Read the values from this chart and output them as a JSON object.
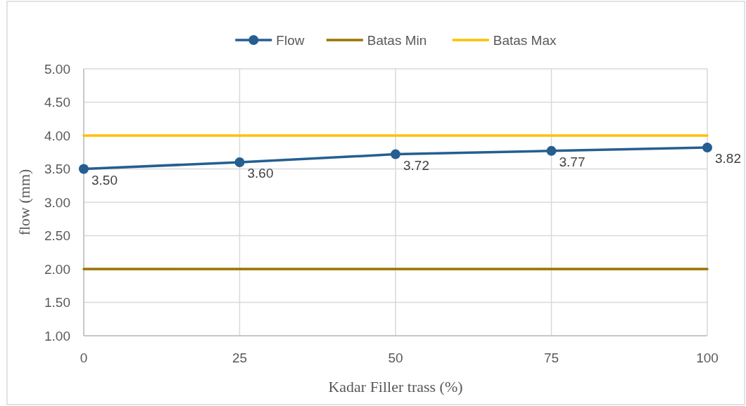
{
  "chart_data": {
    "type": "line",
    "xlabel": "Kadar Filler trass (%)",
    "ylabel": "flow (mm)",
    "x": [
      0,
      25,
      50,
      75,
      100
    ],
    "xlim": [
      0,
      100
    ],
    "xticks": [
      0,
      25,
      50,
      75,
      100
    ],
    "ylim": [
      1,
      5
    ],
    "yticks": [
      {
        "value": 1,
        "label": "1.00"
      },
      {
        "value": 1.5,
        "label": "1.50"
      },
      {
        "value": 2,
        "label": "2.00"
      },
      {
        "value": 2.5,
        "label": "2.50"
      },
      {
        "value": 3,
        "label": "3.00"
      },
      {
        "value": 3.5,
        "label": "3.50"
      },
      {
        "value": 4,
        "label": "4.00"
      },
      {
        "value": 4.5,
        "label": "4.50"
      },
      {
        "value": 5,
        "label": "5.00"
      }
    ],
    "grid": true,
    "legend": "top",
    "series": [
      {
        "name": "Flow",
        "color": "#255e91",
        "values": [
          3.5,
          3.6,
          3.72,
          3.77,
          3.82
        ],
        "marker": "circle",
        "value_labels": [
          "3.50",
          "3.60",
          "3.72",
          "3.77",
          "3.82"
        ]
      },
      {
        "name": "Batas Min",
        "color": "#997300",
        "values": [
          2,
          2,
          2,
          2,
          2
        ],
        "marker": "none"
      },
      {
        "name": "Batas Max",
        "color": "#ffc000",
        "values": [
          4,
          4,
          4,
          4,
          4
        ],
        "marker": "none"
      }
    ]
  }
}
